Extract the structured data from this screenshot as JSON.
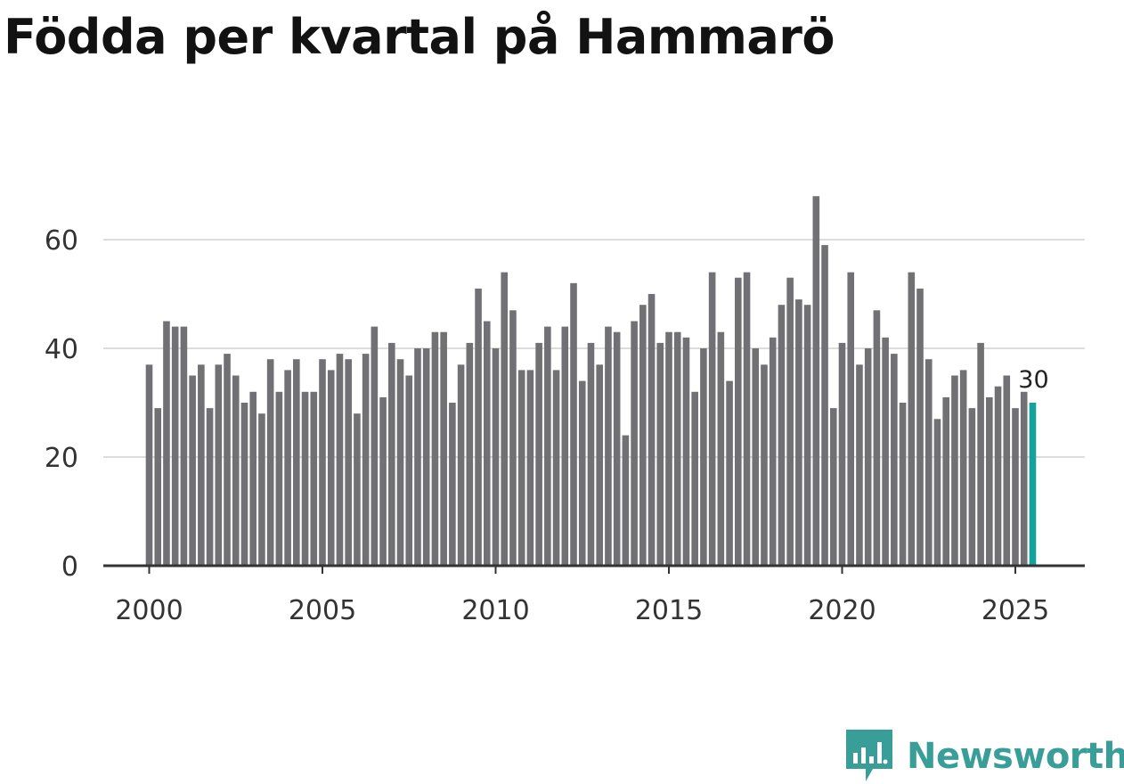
{
  "title": "Födda per kvartal på Hammarö",
  "brand": {
    "name": "Newsworthy",
    "color": "#3a9e98",
    "icon": "newsworthy-logo-icon"
  },
  "colors": {
    "bar": "#717075",
    "highlight": "#13a39a",
    "grid": "#dcdcdc",
    "axis": "#333333"
  },
  "chart_data": {
    "type": "bar",
    "title": "Födda per kvartal på Hammarö",
    "xlabel": "",
    "ylabel": "",
    "ylim": [
      0,
      70
    ],
    "yticks": [
      0,
      20,
      40,
      60
    ],
    "xticks": [
      2000,
      2005,
      2010,
      2015,
      2020,
      2025
    ],
    "grid": true,
    "highlight_last": true,
    "last_label": "30",
    "categories": [
      "2000 Q1",
      "2000 Q2",
      "2000 Q3",
      "2000 Q4",
      "2001 Q1",
      "2001 Q2",
      "2001 Q3",
      "2001 Q4",
      "2002 Q1",
      "2002 Q2",
      "2002 Q3",
      "2002 Q4",
      "2003 Q1",
      "2003 Q2",
      "2003 Q3",
      "2003 Q4",
      "2004 Q1",
      "2004 Q2",
      "2004 Q3",
      "2004 Q4",
      "2005 Q1",
      "2005 Q2",
      "2005 Q3",
      "2005 Q4",
      "2006 Q1",
      "2006 Q2",
      "2006 Q3",
      "2006 Q4",
      "2007 Q1",
      "2007 Q2",
      "2007 Q3",
      "2007 Q4",
      "2008 Q1",
      "2008 Q2",
      "2008 Q3",
      "2008 Q4",
      "2009 Q1",
      "2009 Q2",
      "2009 Q3",
      "2009 Q4",
      "2010 Q1",
      "2010 Q2",
      "2010 Q3",
      "2010 Q4",
      "2011 Q1",
      "2011 Q2",
      "2011 Q3",
      "2011 Q4",
      "2012 Q1",
      "2012 Q2",
      "2012 Q3",
      "2012 Q4",
      "2013 Q1",
      "2013 Q2",
      "2013 Q3",
      "2013 Q4",
      "2014 Q1",
      "2014 Q2",
      "2014 Q3",
      "2014 Q4",
      "2015 Q1",
      "2015 Q2",
      "2015 Q3",
      "2015 Q4",
      "2016 Q1",
      "2016 Q2",
      "2016 Q3",
      "2016 Q4",
      "2017 Q1",
      "2017 Q2",
      "2017 Q3",
      "2017 Q4",
      "2018 Q1",
      "2018 Q2",
      "2018 Q3",
      "2018 Q4",
      "2019 Q1",
      "2019 Q2",
      "2019 Q3",
      "2019 Q4",
      "2020 Q1",
      "2020 Q2",
      "2020 Q3",
      "2020 Q4",
      "2021 Q1",
      "2021 Q2",
      "2021 Q3",
      "2021 Q4",
      "2022 Q1",
      "2022 Q2",
      "2022 Q3",
      "2022 Q4",
      "2023 Q1",
      "2023 Q2",
      "2023 Q3",
      "2023 Q4",
      "2024 Q1",
      "2024 Q2",
      "2024 Q3",
      "2024 Q4",
      "2025 Q1",
      "2025 Q2",
      "2025 Q3"
    ],
    "values": [
      37,
      29,
      45,
      44,
      44,
      35,
      37,
      29,
      37,
      39,
      35,
      30,
      32,
      28,
      38,
      32,
      36,
      38,
      32,
      32,
      38,
      36,
      39,
      38,
      28,
      39,
      44,
      31,
      41,
      38,
      35,
      40,
      40,
      43,
      43,
      30,
      37,
      41,
      51,
      45,
      40,
      54,
      47,
      36,
      36,
      41,
      44,
      36,
      44,
      52,
      34,
      41,
      37,
      44,
      43,
      24,
      45,
      48,
      50,
      41,
      43,
      43,
      42,
      32,
      40,
      54,
      43,
      34,
      53,
      54,
      40,
      37,
      42,
      48,
      53,
      49,
      48,
      68,
      59,
      29,
      41,
      54,
      37,
      40,
      47,
      42,
      39,
      30,
      54,
      51,
      38,
      27,
      31,
      35,
      36,
      29,
      41,
      31,
      33,
      35,
      29,
      32,
      30
    ]
  }
}
